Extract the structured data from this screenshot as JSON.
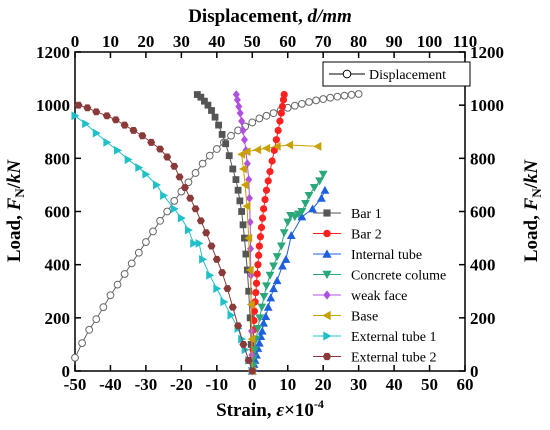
{
  "chart_data": {
    "type": "scatter",
    "bottom_axis": {
      "label": "Strain, ",
      "label_italic": "ε",
      "label_suffix": "×10",
      "label_sup": "-4",
      "range": [
        -50,
        60
      ],
      "ticks": [
        -50,
        -40,
        -30,
        -20,
        -10,
        0,
        10,
        20,
        30,
        40,
        50,
        60
      ]
    },
    "top_axis": {
      "label": "Displacement, ",
      "label_italic": "d/mm",
      "range": [
        0,
        110
      ],
      "ticks": [
        0,
        10,
        20,
        30,
        40,
        50,
        60,
        70,
        80,
        90,
        100,
        110
      ]
    },
    "left_axis": {
      "label": "Load,  ",
      "label_italic": "F",
      "label_sub": "N",
      "label_suffix": "/",
      "label_italic2": "kN",
      "range": [
        0,
        1200
      ],
      "ticks": [
        0,
        200,
        400,
        600,
        800,
        1000,
        1200
      ]
    },
    "right_axis": {
      "label": "Load,  ",
      "label_italic": "F",
      "label_sub": "N",
      "label_suffix": "/",
      "label_italic2": "kN",
      "range": [
        0,
        1200
      ],
      "ticks": [
        0,
        200,
        400,
        600,
        800,
        1000,
        1200
      ]
    },
    "legend_top": {
      "position": "top-right",
      "entries": [
        "Displacement"
      ]
    },
    "legend_main": {
      "position": "center-right",
      "entries": [
        "Bar 1",
        "Bar 2",
        "Internal tube",
        "Concrete colume",
        "weak face",
        "Base",
        "External tube 1",
        "External tube 2"
      ]
    },
    "grid": false,
    "series": [
      {
        "name": "Displacement",
        "axis": "top",
        "marker": "open-circle",
        "color": "#666666",
        "x": [
          0,
          2,
          4,
          6,
          8,
          10,
          12,
          14,
          16,
          18,
          20,
          22,
          24,
          26,
          28,
          30,
          32,
          34,
          36,
          38,
          40,
          42,
          44,
          46,
          48,
          50,
          52,
          54,
          56,
          58,
          60,
          62,
          64,
          66,
          68,
          70,
          72,
          74,
          76,
          78,
          80
        ],
        "y": [
          50,
          105,
          155,
          195,
          240,
          285,
          325,
          365,
          405,
          445,
          485,
          525,
          565,
          600,
          640,
          675,
          710,
          745,
          780,
          810,
          835,
          860,
          885,
          905,
          920,
          935,
          950,
          960,
          970,
          980,
          990,
          998,
          1005,
          1012,
          1018,
          1023,
          1028,
          1032,
          1036,
          1039,
          1042
        ]
      },
      {
        "name": "Bar 1",
        "axis": "bottom",
        "marker": "square",
        "color": "#555555",
        "x": [
          -15.5,
          -14.5,
          -13.5,
          -12.5,
          -11.5,
          -10.5,
          -9.5,
          -8.5,
          -7.5,
          -6.5,
          -5.5,
          -4.6,
          -4.0,
          -3.5,
          -3.0,
          -2.6,
          -2.2,
          -1.8,
          -1.4,
          -1.0,
          -0.6,
          -0.3,
          0
        ],
        "y": [
          1040,
          1030,
          1015,
          1000,
          980,
          955,
          925,
          890,
          855,
          810,
          760,
          720,
          680,
          640,
          600,
          550,
          500,
          440,
          380,
          300,
          200,
          100,
          0
        ]
      },
      {
        "name": "Bar 2",
        "axis": "bottom",
        "marker": "circle",
        "color": "#ff2020",
        "x": [
          9.0,
          8.8,
          8.5,
          8.2,
          7.8,
          7.3,
          6.8,
          6.2,
          5.6,
          5.0,
          4.5,
          4.0,
          3.6,
          3.2,
          2.9,
          2.6,
          2.3,
          2.0,
          1.8,
          1.6,
          1.4,
          1.2,
          1.0,
          0.8,
          0.6,
          0.5,
          0.4,
          0.3,
          0.2,
          0.1,
          0
        ],
        "y": [
          1040,
          1020,
          995,
          970,
          940,
          905,
          870,
          830,
          790,
          750,
          715,
          680,
          645,
          610,
          575,
          540,
          505,
          470,
          435,
          400,
          365,
          330,
          295,
          260,
          225,
          190,
          155,
          120,
          80,
          40,
          0
        ]
      },
      {
        "name": "Internal tube",
        "axis": "bottom",
        "marker": "triangle-up",
        "color": "#1f60e0",
        "x": [
          20.5,
          19.5,
          17,
          14,
          11,
          9.5,
          8.5,
          7.0,
          6.0,
          5.2,
          4.5,
          3.8,
          3.2,
          2.8,
          2.4,
          2.0,
          1.6,
          1.2,
          0.8,
          0.5,
          0.3,
          0
        ],
        "y": [
          680,
          650,
          610,
          580,
          510,
          420,
          395,
          340,
          310,
          275,
          240,
          205,
          180,
          150,
          130,
          105,
          85,
          60,
          40,
          25,
          10,
          0
        ]
      },
      {
        "name": "Concrete colume",
        "axis": "bottom",
        "marker": "triangle-down",
        "color": "#2aa87a",
        "x": [
          20,
          19,
          17.5,
          16,
          15,
          14,
          13,
          12,
          10.8,
          10,
          9.0,
          8.2,
          7.0,
          6.0,
          5.0,
          4.0,
          3.3,
          2.7,
          2.1,
          1.6,
          1.1,
          0.7,
          0.4,
          0.2,
          0
        ],
        "y": [
          740,
          715,
          690,
          660,
          630,
          600,
          590,
          580,
          585,
          560,
          520,
          470,
          430,
          395,
          360,
          320,
          280,
          240,
          200,
          160,
          120,
          80,
          50,
          20,
          0
        ]
      },
      {
        "name": "weak face",
        "axis": "bottom",
        "marker": "diamond",
        "color": "#b050e0",
        "x": [
          -4.5,
          -4.2,
          -3.8,
          -3.4,
          -3.0,
          -2.6,
          -2.2,
          -1.8,
          -1.4,
          -1.0,
          -0.8,
          -0.6,
          -0.5,
          -0.4,
          -0.3,
          -0.2,
          -0.1,
          0
        ],
        "y": [
          1040,
          1020,
          995,
          970,
          940,
          905,
          870,
          830,
          780,
          720,
          650,
          560,
          460,
          360,
          250,
          150,
          60,
          0
        ]
      },
      {
        "name": "Base",
        "axis": "bottom",
        "marker": "triangle-left",
        "color": "#c8a000",
        "x": [
          18.5,
          10.5,
          7.0,
          4.0,
          1.5,
          -1.5,
          -3.0,
          -2.5,
          -2.0,
          -1.5,
          -1.0,
          -0.6,
          -0.3,
          -0.1,
          0
        ],
        "y": [
          845,
          850,
          845,
          838,
          832,
          825,
          815,
          760,
          700,
          620,
          500,
          380,
          250,
          120,
          0
        ]
      },
      {
        "name": "External tube 1",
        "axis": "bottom",
        "marker": "triangle-right",
        "color": "#20c0c8",
        "x": [
          -50,
          -47,
          -44,
          -41,
          -38,
          -35,
          -32,
          -30,
          -27,
          -25,
          -22,
          -20,
          -18,
          -16.5,
          -15,
          -14,
          -12,
          -10,
          -8,
          -6,
          -4,
          -3,
          -2,
          -1,
          0
        ],
        "y": [
          960,
          930,
          895,
          860,
          830,
          795,
          765,
          740,
          700,
          660,
          610,
          575,
          530,
          480,
          480,
          420,
          360,
          310,
          260,
          210,
          160,
          120,
          80,
          40,
          0
        ]
      },
      {
        "name": "External tube 2",
        "axis": "bottom",
        "marker": "hexagon",
        "color": "#8b3a3a",
        "x": [
          -49,
          -46.5,
          -44,
          -41,
          -38.5,
          -36,
          -33.5,
          -31,
          -28.5,
          -26,
          -24,
          -22,
          -20.5,
          -19,
          -17.5,
          -16,
          -14.5,
          -13,
          -11.5,
          -10,
          -8.5,
          -7,
          -5.5,
          -4,
          -2.5,
          -1,
          0
        ],
        "y": [
          1000,
          990,
          975,
          960,
          945,
          925,
          905,
          885,
          860,
          835,
          805,
          770,
          730,
          690,
          650,
          610,
          565,
          520,
          470,
          420,
          370,
          310,
          240,
          170,
          100,
          40,
          0
        ]
      }
    ]
  }
}
